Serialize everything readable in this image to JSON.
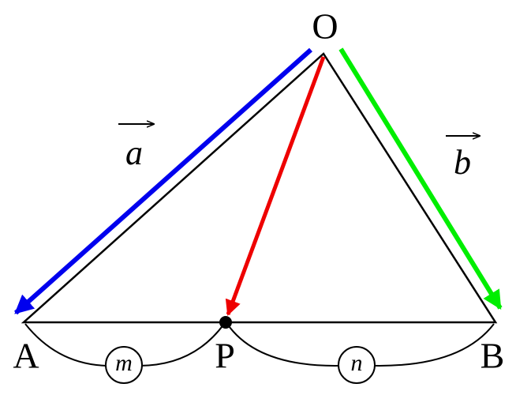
{
  "points": {
    "O": "O",
    "A": "A",
    "B": "B",
    "P": "P"
  },
  "vectors": {
    "a": "a",
    "b": "b"
  },
  "ratios": {
    "m": "m",
    "n": "n"
  }
}
